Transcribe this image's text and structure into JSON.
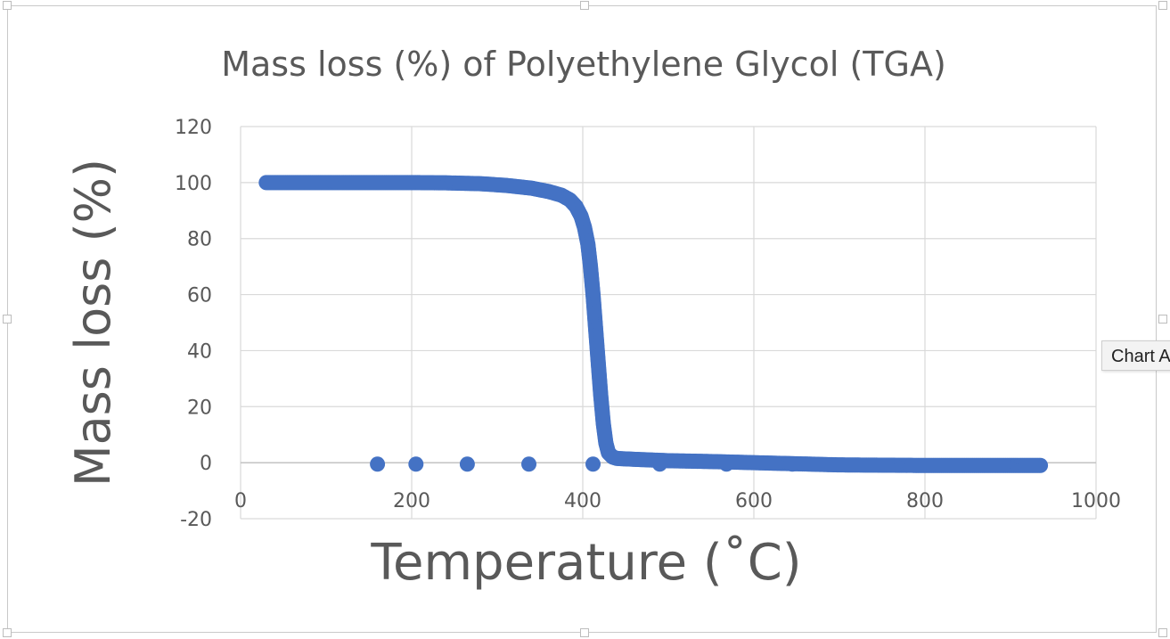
{
  "chart_data": {
    "type": "scatter",
    "title": "Mass loss (%) of Polyethylene Glycol (TGA)",
    "xlabel": "Temperature (˚C)",
    "ylabel": "Mass loss (%)",
    "xlim": [
      0,
      1000
    ],
    "ylim": [
      -20,
      120
    ],
    "xticks": [
      0,
      200,
      400,
      600,
      800,
      1000
    ],
    "yticks": [
      -20,
      0,
      20,
      40,
      60,
      80,
      100,
      120
    ],
    "grid": true,
    "legend": "none",
    "marker_color": "#4472C4",
    "series": [
      {
        "curve": [
          [
            30,
            100
          ],
          [
            100,
            100
          ],
          [
            150,
            100
          ],
          [
            200,
            100
          ],
          [
            240,
            99.9
          ],
          [
            280,
            99.6
          ],
          [
            310,
            99
          ],
          [
            340,
            98
          ],
          [
            360,
            96.8
          ],
          [
            375,
            95.5
          ],
          [
            385,
            93.8
          ],
          [
            392,
            91.5
          ],
          [
            398,
            88
          ],
          [
            402,
            84
          ],
          [
            406,
            78
          ],
          [
            409,
            70
          ],
          [
            412,
            60
          ],
          [
            415,
            48
          ],
          [
            418,
            36
          ],
          [
            421,
            24
          ],
          [
            424,
            14
          ],
          [
            427,
            7
          ],
          [
            430,
            3.5
          ],
          [
            435,
            2
          ],
          [
            440,
            1.5
          ],
          [
            460,
            1.2
          ],
          [
            500,
            0.7
          ],
          [
            550,
            0.4
          ],
          [
            600,
            0
          ],
          [
            650,
            -0.4
          ],
          [
            700,
            -0.8
          ],
          [
            800,
            -1
          ],
          [
            900,
            -1
          ],
          [
            935,
            -1
          ]
        ],
        "isolated_points": [
          [
            160,
            -0.5
          ],
          [
            205,
            -0.5
          ],
          [
            265,
            -0.5
          ],
          [
            337,
            -0.5
          ],
          [
            412,
            -0.5
          ],
          [
            490,
            -0.5
          ],
          [
            568,
            -0.5
          ],
          [
            645,
            -0.5
          ]
        ]
      }
    ]
  },
  "ui": {
    "tooltip_text": "Chart Area"
  }
}
